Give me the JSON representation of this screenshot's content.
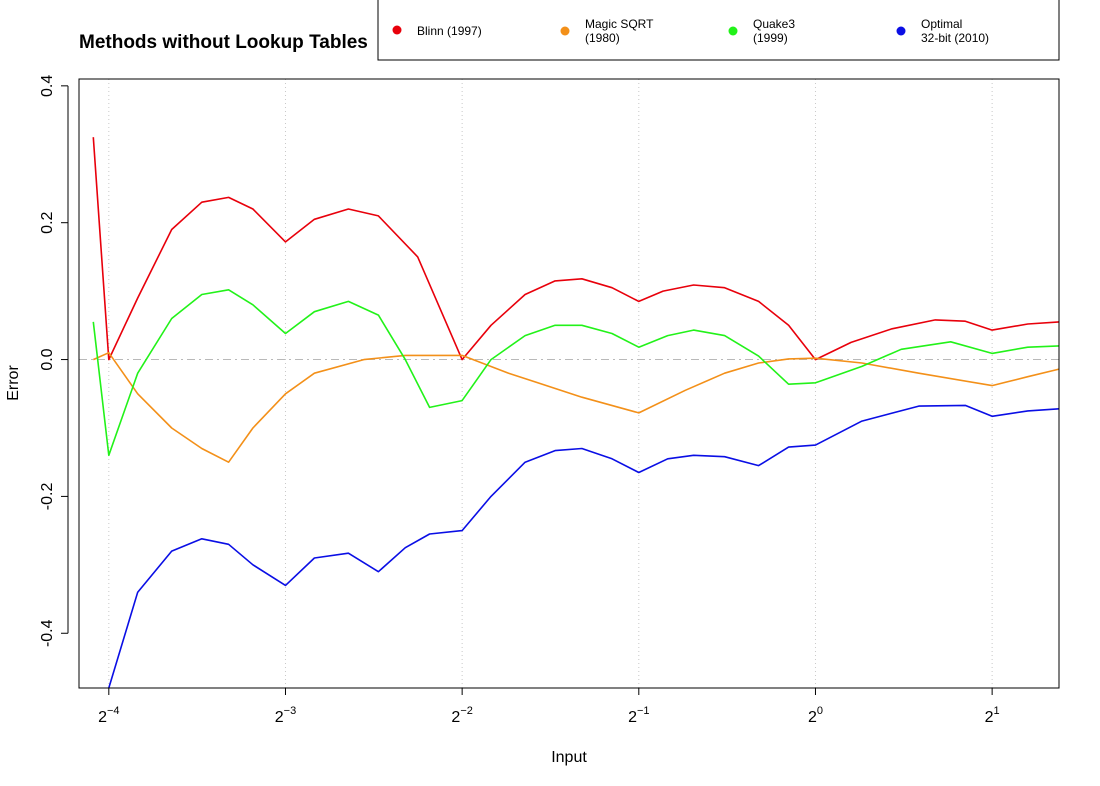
{
  "chart_data": {
    "type": "line",
    "title": "Methods without Lookup Tables",
    "xlabel": "Input",
    "ylabel": "Error",
    "xscale": "log2",
    "xlim": [
      0.0556,
      2.6
    ],
    "ylim": [
      -0.48,
      0.41
    ],
    "x_ticks": [
      {
        "value": 0.0625,
        "base": "2",
        "exp": "−4"
      },
      {
        "value": 0.125,
        "base": "2",
        "exp": "−3"
      },
      {
        "value": 0.25,
        "base": "2",
        "exp": "−2"
      },
      {
        "value": 0.5,
        "base": "2",
        "exp": "−1"
      },
      {
        "value": 1,
        "base": "2",
        "exp": "0"
      },
      {
        "value": 2,
        "base": "2",
        "exp": "1"
      }
    ],
    "y_ticks": [
      "-0.4",
      "-0.2",
      "0.0",
      "0.2",
      "0.4"
    ],
    "y_tick_values": [
      -0.4,
      -0.2,
      0.0,
      0.2,
      0.4
    ],
    "vertical_guides": [
      0.0625,
      0.125,
      0.25,
      0.5,
      1,
      2
    ],
    "reference_line_y": 0.0,
    "grid": false,
    "legend_position": "top-right",
    "series": [
      {
        "name": "Blinn (1997)",
        "color": "#e8000b",
        "points": [
          [
            0.0588,
            0.325
          ],
          [
            0.0625,
            0.0
          ],
          [
            0.07,
            0.09
          ],
          [
            0.08,
            0.19
          ],
          [
            0.09,
            0.23
          ],
          [
            0.1,
            0.237
          ],
          [
            0.11,
            0.22
          ],
          [
            0.125,
            0.172
          ],
          [
            0.14,
            0.205
          ],
          [
            0.16,
            0.22
          ],
          [
            0.18,
            0.21
          ],
          [
            0.21,
            0.15
          ],
          [
            0.25,
            0.0
          ],
          [
            0.28,
            0.05
          ],
          [
            0.32,
            0.095
          ],
          [
            0.36,
            0.115
          ],
          [
            0.4,
            0.118
          ],
          [
            0.45,
            0.105
          ],
          [
            0.5,
            0.085
          ],
          [
            0.55,
            0.1
          ],
          [
            0.62,
            0.109
          ],
          [
            0.7,
            0.105
          ],
          [
            0.8,
            0.085
          ],
          [
            0.9,
            0.05
          ],
          [
            1.0,
            0.0
          ],
          [
            1.15,
            0.025
          ],
          [
            1.35,
            0.045
          ],
          [
            1.6,
            0.058
          ],
          [
            1.8,
            0.056
          ],
          [
            2.0,
            0.043
          ],
          [
            2.3,
            0.052
          ],
          [
            2.6,
            0.055
          ]
        ]
      },
      {
        "name": "Magic SQRT\n(1980)",
        "color": "#f39019",
        "points": [
          [
            0.0588,
            0.0
          ],
          [
            0.0625,
            0.01
          ],
          [
            0.07,
            -0.05
          ],
          [
            0.08,
            -0.1
          ],
          [
            0.09,
            -0.13
          ],
          [
            0.1,
            -0.15
          ],
          [
            0.11,
            -0.1
          ],
          [
            0.125,
            -0.05
          ],
          [
            0.14,
            -0.02
          ],
          [
            0.17,
            0.0
          ],
          [
            0.2,
            0.006
          ],
          [
            0.25,
            0.006
          ],
          [
            0.3,
            -0.02
          ],
          [
            0.4,
            -0.055
          ],
          [
            0.5,
            -0.078
          ],
          [
            0.6,
            -0.045
          ],
          [
            0.7,
            -0.02
          ],
          [
            0.8,
            -0.005
          ],
          [
            0.9,
            0.001
          ],
          [
            1.0,
            0.002
          ],
          [
            1.2,
            -0.005
          ],
          [
            1.5,
            -0.02
          ],
          [
            2.0,
            -0.038
          ],
          [
            2.3,
            -0.025
          ],
          [
            2.6,
            -0.014
          ]
        ]
      },
      {
        "name": "Quake3\n(1999)",
        "color": "#22f219",
        "points": [
          [
            0.0588,
            0.055
          ],
          [
            0.0625,
            -0.14
          ],
          [
            0.07,
            -0.02
          ],
          [
            0.08,
            0.06
          ],
          [
            0.09,
            0.095
          ],
          [
            0.1,
            0.102
          ],
          [
            0.11,
            0.08
          ],
          [
            0.125,
            0.038
          ],
          [
            0.14,
            0.07
          ],
          [
            0.16,
            0.085
          ],
          [
            0.18,
            0.065
          ],
          [
            0.2,
            0.0
          ],
          [
            0.22,
            -0.07
          ],
          [
            0.25,
            -0.06
          ],
          [
            0.28,
            0.0
          ],
          [
            0.32,
            0.035
          ],
          [
            0.36,
            0.05
          ],
          [
            0.4,
            0.05
          ],
          [
            0.45,
            0.038
          ],
          [
            0.5,
            0.018
          ],
          [
            0.56,
            0.035
          ],
          [
            0.62,
            0.043
          ],
          [
            0.7,
            0.035
          ],
          [
            0.8,
            0.005
          ],
          [
            0.9,
            -0.036
          ],
          [
            1.0,
            -0.034
          ],
          [
            1.2,
            -0.01
          ],
          [
            1.4,
            0.015
          ],
          [
            1.7,
            0.026
          ],
          [
            2.0,
            0.009
          ],
          [
            2.3,
            0.018
          ],
          [
            2.6,
            0.02
          ]
        ]
      },
      {
        "name": "Optimal\n32-bit (2010)",
        "color": "#0a0ee5",
        "points": [
          [
            0.0625,
            -0.48
          ],
          [
            0.07,
            -0.34
          ],
          [
            0.08,
            -0.28
          ],
          [
            0.09,
            -0.262
          ],
          [
            0.1,
            -0.27
          ],
          [
            0.11,
            -0.3
          ],
          [
            0.125,
            -0.33
          ],
          [
            0.14,
            -0.29
          ],
          [
            0.16,
            -0.283
          ],
          [
            0.18,
            -0.31
          ],
          [
            0.2,
            -0.275
          ],
          [
            0.22,
            -0.255
          ],
          [
            0.25,
            -0.25
          ],
          [
            0.28,
            -0.2
          ],
          [
            0.32,
            -0.15
          ],
          [
            0.36,
            -0.133
          ],
          [
            0.4,
            -0.13
          ],
          [
            0.45,
            -0.145
          ],
          [
            0.5,
            -0.165
          ],
          [
            0.56,
            -0.145
          ],
          [
            0.62,
            -0.14
          ],
          [
            0.7,
            -0.142
          ],
          [
            0.8,
            -0.155
          ],
          [
            0.9,
            -0.128
          ],
          [
            1.0,
            -0.125
          ],
          [
            1.2,
            -0.09
          ],
          [
            1.5,
            -0.068
          ],
          [
            1.8,
            -0.067
          ],
          [
            2.0,
            -0.083
          ],
          [
            2.3,
            -0.075
          ],
          [
            2.6,
            -0.072
          ]
        ]
      }
    ]
  }
}
